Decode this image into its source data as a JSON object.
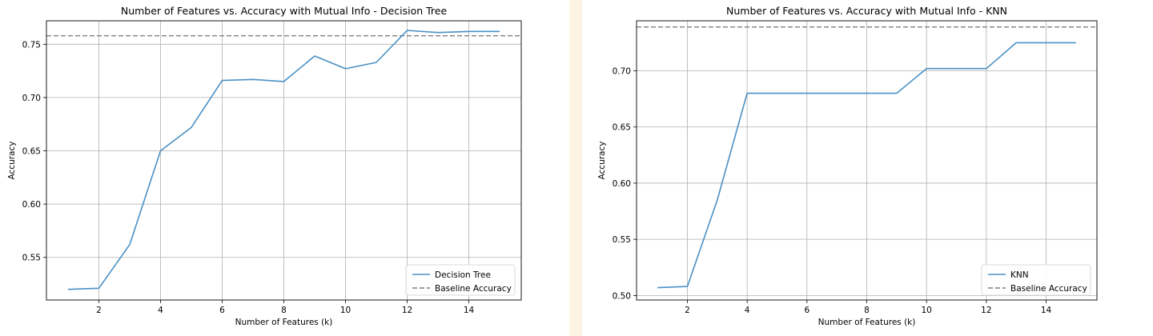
{
  "chart_data": [
    {
      "type": "line",
      "title": "Number of Features vs. Accuracy with Mutual Info - Decision Tree",
      "xlabel": "Number of Features (k)",
      "ylabel": "Accuracy",
      "xlim": [
        0.3,
        15.7
      ],
      "ylim": [
        0.51,
        0.772
      ],
      "xticks": [
        2,
        4,
        6,
        8,
        10,
        12,
        14
      ],
      "xtick_labels": [
        "2",
        "4",
        "6",
        "8",
        "10",
        "12",
        "14"
      ],
      "yticks": [
        0.55,
        0.6,
        0.65,
        0.7,
        0.75
      ],
      "ytick_labels": [
        "0.55",
        "0.60",
        "0.65",
        "0.70",
        "0.75"
      ],
      "grid": true,
      "legend_position": "lower-right",
      "series": [
        {
          "name": "Decision Tree",
          "style": "solid",
          "color": "#4a90c4",
          "x": [
            1,
            2,
            3,
            4,
            5,
            6,
            7,
            8,
            9,
            10,
            11,
            12,
            13,
            14,
            15
          ],
          "y": [
            0.52,
            0.521,
            0.562,
            0.65,
            0.672,
            0.716,
            0.717,
            0.715,
            0.739,
            0.727,
            0.733,
            0.763,
            0.761,
            0.762,
            0.762
          ]
        }
      ],
      "baseline": {
        "name": "Baseline Accuracy",
        "value": 0.758,
        "style": "dashed",
        "color": "#7f7f7f"
      }
    },
    {
      "type": "line",
      "title": "Number of Features vs. Accuracy with Mutual Info - KNN",
      "xlabel": "Number of Features (k)",
      "ylabel": "Accuracy",
      "xlim": [
        0.3,
        15.7
      ],
      "ylim": [
        0.496,
        0.7445
      ],
      "xticks": [
        2,
        4,
        6,
        8,
        10,
        12,
        14
      ],
      "xtick_labels": [
        "2",
        "4",
        "6",
        "8",
        "10",
        "12",
        "14"
      ],
      "yticks": [
        0.5,
        0.55,
        0.6,
        0.65,
        0.7
      ],
      "ytick_labels": [
        "0.50",
        "0.55",
        "0.60",
        "0.65",
        "0.70"
      ],
      "grid": true,
      "legend_position": "lower-right",
      "series": [
        {
          "name": "KNN",
          "style": "solid",
          "color": "#4a90c4",
          "x": [
            1,
            2,
            3,
            4,
            5,
            6,
            7,
            8,
            9,
            10,
            11,
            12,
            13,
            14,
            15
          ],
          "y": [
            0.507,
            0.508,
            0.585,
            0.68,
            0.68,
            0.68,
            0.68,
            0.68,
            0.68,
            0.702,
            0.702,
            0.702,
            0.725,
            0.725,
            0.725
          ]
        }
      ],
      "baseline": {
        "name": "Baseline Accuracy",
        "value": 0.739,
        "style": "dashed",
        "color": "#7f7f7f"
      }
    }
  ]
}
